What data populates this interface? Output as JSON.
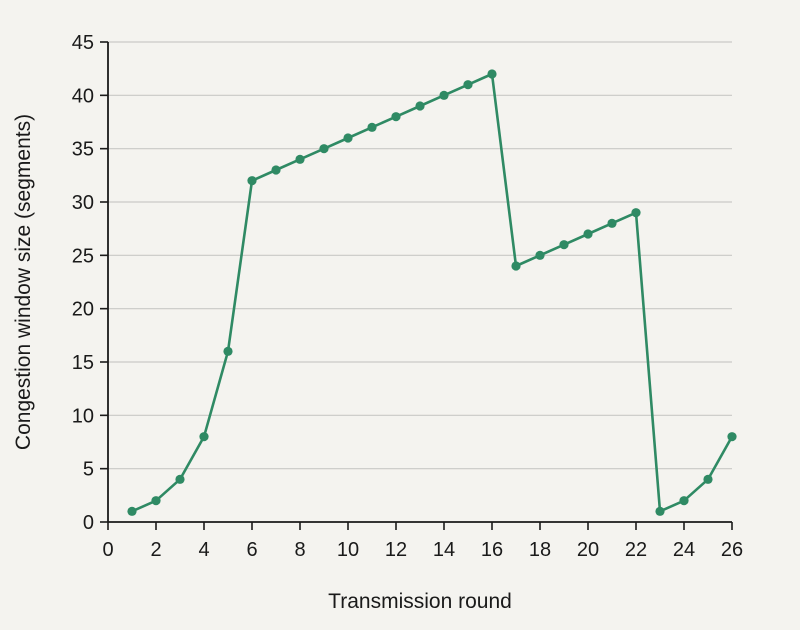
{
  "chart_data": {
    "type": "line",
    "title": "",
    "xlabel": "Transmission round",
    "ylabel": "Congestion window size (segments)",
    "xlim": [
      0,
      26
    ],
    "ylim": [
      0,
      45
    ],
    "x_ticks": [
      0,
      2,
      4,
      6,
      8,
      10,
      12,
      14,
      16,
      18,
      20,
      22,
      24,
      26
    ],
    "y_ticks": [
      0,
      5,
      10,
      15,
      20,
      25,
      30,
      35,
      40,
      45
    ],
    "grid": true,
    "legend": "none",
    "series": [
      {
        "color": "#2f8a64",
        "points": [
          {
            "x": 1,
            "y": 1
          },
          {
            "x": 2,
            "y": 2
          },
          {
            "x": 3,
            "y": 4
          },
          {
            "x": 4,
            "y": 8
          },
          {
            "x": 5,
            "y": 16
          },
          {
            "x": 6,
            "y": 32
          },
          {
            "x": 7,
            "y": 33
          },
          {
            "x": 8,
            "y": 34
          },
          {
            "x": 9,
            "y": 35
          },
          {
            "x": 10,
            "y": 36
          },
          {
            "x": 11,
            "y": 37
          },
          {
            "x": 12,
            "y": 38
          },
          {
            "x": 13,
            "y": 39
          },
          {
            "x": 14,
            "y": 40
          },
          {
            "x": 15,
            "y": 41
          },
          {
            "x": 16,
            "y": 42
          },
          {
            "x": 17,
            "y": 24
          },
          {
            "x": 18,
            "y": 25
          },
          {
            "x": 19,
            "y": 26
          },
          {
            "x": 20,
            "y": 27
          },
          {
            "x": 21,
            "y": 28
          },
          {
            "x": 22,
            "y": 29
          },
          {
            "x": 23,
            "y": 1
          },
          {
            "x": 24,
            "y": 2
          },
          {
            "x": 25,
            "y": 4
          },
          {
            "x": 26,
            "y": 8
          }
        ]
      }
    ]
  }
}
